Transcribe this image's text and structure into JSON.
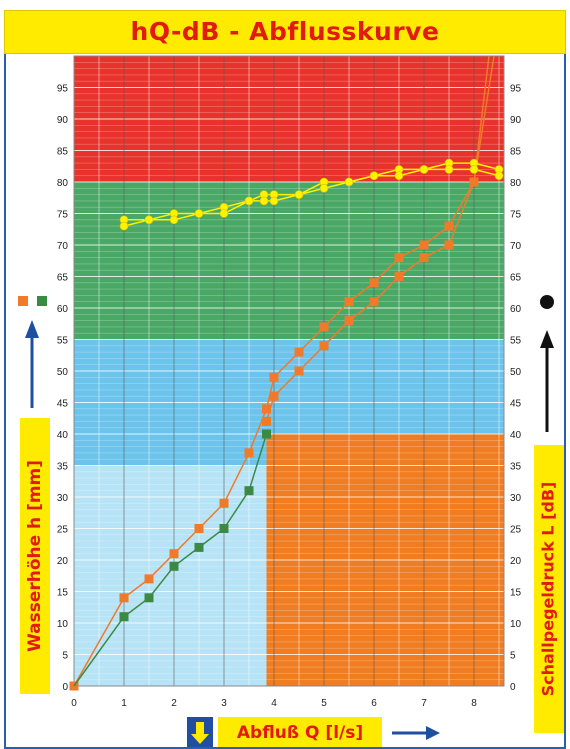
{
  "header": {
    "top_text": "",
    "title": "hQ-dB - Abflusskurve"
  },
  "colors": {
    "red_zone": "#e8322c",
    "green_zone": "#4aa866",
    "blue_zone": "#6cc4ec",
    "light_blue_zone": "#b7e3f6",
    "orange_zone": "#f07d22",
    "orange_series": "#f07a2a",
    "green_series": "#3b8a44",
    "yellow_series": "#fff200",
    "label_bg": "#ffeb00",
    "label_text": "#e11b12",
    "arrow": "#1f4fa0",
    "title_bg": "#ffeb00"
  },
  "chart_data": {
    "type": "line",
    "title": "hQ-dB - Abflusskurve",
    "xlabel": "Abfluß Q [l/s]",
    "ylabel_left": "Wasserhöhe h [mm]",
    "ylabel_right": "Schallpegeldruck L [dB]",
    "xlim": [
      0,
      8.6
    ],
    "ylim": [
      0,
      100
    ],
    "x_ticks": [
      0,
      1,
      2,
      3,
      4,
      5,
      6,
      7,
      8
    ],
    "y_ticks": [
      0,
      5,
      10,
      15,
      20,
      25,
      30,
      35,
      40,
      45,
      50,
      55,
      60,
      65,
      70,
      75,
      80,
      85,
      90,
      95
    ],
    "grid": true,
    "zones": [
      {
        "name": "red",
        "y": [
          80,
          100
        ]
      },
      {
        "name": "green",
        "y": [
          55,
          80
        ]
      },
      {
        "name": "blue",
        "y": [
          35,
          55
        ]
      },
      {
        "name": "light_blue",
        "y": [
          0,
          35
        ]
      },
      {
        "name": "orange",
        "x": [
          3.85,
          8.6
        ],
        "y": [
          0,
          40
        ]
      }
    ],
    "series": [
      {
        "marker": "square-orange",
        "x": [
          0,
          1,
          1.5,
          2,
          2.5,
          3,
          3.5,
          3.85,
          4,
          4.5,
          5,
          5.5,
          6,
          6.5,
          7,
          7.5,
          8,
          8.3
        ],
        "y": [
          0,
          14,
          17,
          21,
          25,
          29,
          37,
          44,
          49,
          53,
          57,
          61,
          64,
          68,
          70,
          73,
          80,
          100
        ]
      },
      {
        "marker": "square-green",
        "x": [
          0,
          1,
          1.5,
          2,
          2.5,
          3,
          3.5,
          3.85
        ],
        "y": [
          0,
          11,
          14,
          19,
          22,
          25,
          31,
          40
        ]
      },
      {
        "marker": "square-orange",
        "x": [
          3.85,
          4,
          4.5,
          5,
          5.5,
          6,
          6.5,
          7,
          7.5,
          8,
          8.4
        ],
        "y": [
          42,
          46,
          50,
          54,
          58,
          61,
          65,
          68,
          70,
          80,
          100
        ]
      },
      {
        "marker": "circle-yellow",
        "x": [
          1,
          1.5,
          2,
          2.5,
          3,
          3.5,
          3.8,
          4,
          4.5,
          5,
          5.5,
          6,
          6.5,
          7,
          7.5,
          8,
          8.5
        ],
        "y": [
          74,
          74,
          75,
          75,
          76,
          77,
          78,
          78,
          78,
          80,
          80,
          81,
          82,
          82,
          83,
          83,
          82
        ]
      },
      {
        "marker": "circle-yellow",
        "x": [
          1,
          1.5,
          2,
          2.5,
          3,
          3.5,
          3.8,
          4,
          4.5,
          5,
          5.5,
          6,
          6.5,
          7,
          7.5,
          8,
          8.5
        ],
        "y": [
          73,
          74,
          74,
          75,
          75,
          77,
          77,
          77,
          78,
          79,
          80,
          81,
          81,
          82,
          82,
          82,
          81
        ]
      }
    ]
  }
}
